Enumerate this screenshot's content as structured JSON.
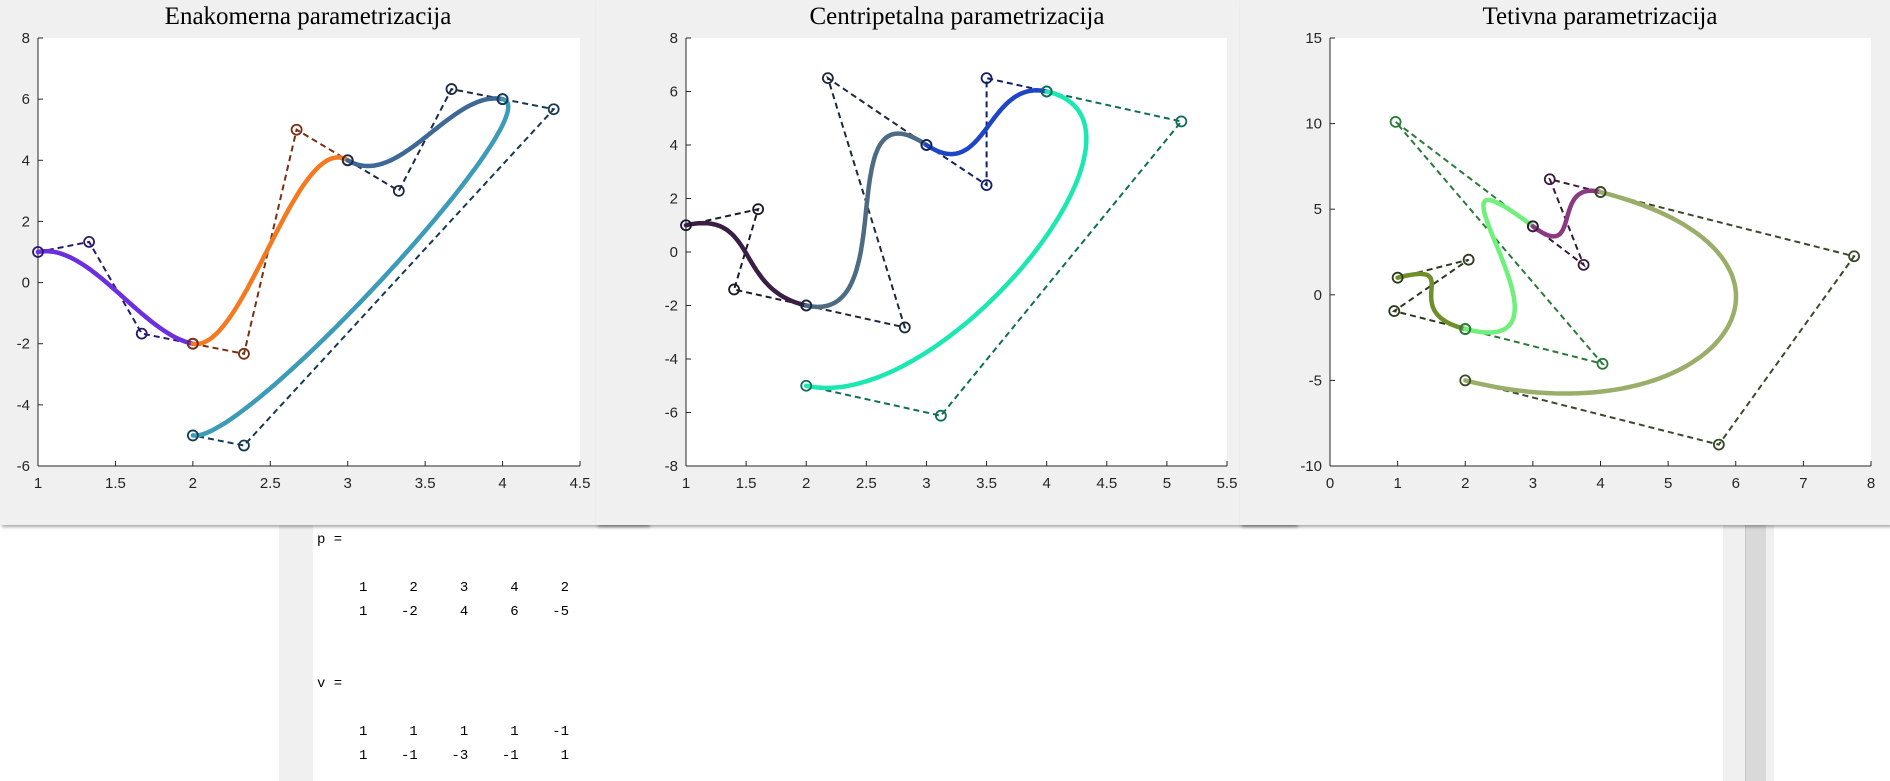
{
  "console": {
    "lines": [
      "p =",
      "",
      "     1     2     3     4     2",
      "     1    -2     4     6    -5",
      "",
      "",
      "v =",
      "",
      "     1     1     1     1    -1",
      "     1    -1    -3    -1     1"
    ]
  },
  "chart_data": [
    {
      "type": "line",
      "title": "Enakomerna parametrizacija",
      "xlim": [
        1,
        4.5
      ],
      "ylim": [
        -6,
        8
      ],
      "xticks": [
        "1",
        "1.5",
        "2",
        "2.5",
        "3",
        "3.5",
        "4",
        "4.5"
      ],
      "yticks": [
        "-6",
        "-4",
        "-2",
        "0",
        "2",
        "4",
        "6",
        "8"
      ],
      "grid": false,
      "segments": [
        {
          "color": "#6b2ee0",
          "polyColor": "#2a1a6e",
          "control": [
            [
              1,
              1
            ],
            [
              1.33,
              1.33
            ],
            [
              1.67,
              -1.67
            ],
            [
              2,
              -2
            ]
          ]
        },
        {
          "color": "#f47a20",
          "polyColor": "#7a2e12",
          "control": [
            [
              2,
              -2
            ],
            [
              2.33,
              -2.33
            ],
            [
              2.67,
              5
            ],
            [
              3,
              4
            ]
          ]
        },
        {
          "color": "#3e6896",
          "polyColor": "#1c2a48",
          "control": [
            [
              3,
              4
            ],
            [
              3.33,
              3
            ],
            [
              3.67,
              6.33
            ],
            [
              4,
              6
            ]
          ]
        },
        {
          "color": "#3c9bb8",
          "polyColor": "#163a52",
          "control": [
            [
              4,
              6
            ],
            [
              4.33,
              5.67
            ],
            [
              2.33,
              -5.33
            ],
            [
              2,
              -5
            ]
          ]
        }
      ]
    },
    {
      "type": "line",
      "title": "Centripetalna parametrizacija",
      "xlim": [
        1,
        5.5
      ],
      "ylim": [
        -8,
        8
      ],
      "xticks": [
        "1",
        "1.5",
        "2",
        "2.5",
        "3",
        "3.5",
        "4",
        "4.5",
        "5",
        "5.5"
      ],
      "yticks": [
        "-8",
        "-6",
        "-4",
        "-2",
        "0",
        "2",
        "4",
        "6",
        "8"
      ],
      "grid": false,
      "segments": [
        {
          "color": "#3a1f45",
          "polyColor": "#1a1a2a",
          "control": [
            [
              1,
              1
            ],
            [
              1.6,
              1.6
            ],
            [
              1.4,
              -1.4
            ],
            [
              2,
              -2
            ]
          ]
        },
        {
          "color": "#4d6b82",
          "polyColor": "#1e2a3a",
          "control": [
            [
              2,
              -2
            ],
            [
              2.82,
              -2.82
            ],
            [
              2.18,
              6.5
            ],
            [
              3,
              4
            ]
          ]
        },
        {
          "color": "#1e44c8",
          "polyColor": "#10206a",
          "control": [
            [
              3,
              4
            ],
            [
              3.5,
              2.5
            ],
            [
              3.5,
              6.5
            ],
            [
              4,
              6
            ]
          ]
        },
        {
          "color": "#1ae8b0",
          "polyColor": "#0f6e58",
          "control": [
            [
              4,
              6
            ],
            [
              5.12,
              4.88
            ],
            [
              3.12,
              -6.12
            ],
            [
              2,
              -5
            ]
          ]
        }
      ]
    },
    {
      "type": "line",
      "title": "Tetivna parametrizacija",
      "xlim": [
        0,
        8
      ],
      "ylim": [
        -10,
        15
      ],
      "xticks": [
        "0",
        "1",
        "2",
        "3",
        "4",
        "5",
        "6",
        "7",
        "8"
      ],
      "yticks": [
        "-10",
        "-5",
        "0",
        "5",
        "10",
        "15"
      ],
      "grid": false,
      "segments": [
        {
          "color": "#6e8f2a",
          "polyColor": "#2c3a1e",
          "control": [
            [
              1,
              1
            ],
            [
              2.05,
              2.05
            ],
            [
              0.95,
              -0.95
            ],
            [
              2,
              -2
            ]
          ]
        },
        {
          "color": "#6ef07a",
          "polyColor": "#2a7a3a",
          "control": [
            [
              2,
              -2
            ],
            [
              4.03,
              -4.03
            ],
            [
              0.97,
              10.1
            ],
            [
              3,
              4
            ]
          ]
        },
        {
          "color": "#8a3a80",
          "polyColor": "#3a1a3a",
          "control": [
            [
              3,
              4
            ],
            [
              3.75,
              1.75
            ],
            [
              3.25,
              6.75
            ],
            [
              4,
              6
            ]
          ]
        },
        {
          "color": "#9aae6a",
          "polyColor": "#3a4a2a",
          "control": [
            [
              4,
              6
            ],
            [
              7.75,
              2.25
            ],
            [
              5.75,
              -8.75
            ],
            [
              2,
              -5
            ]
          ]
        }
      ]
    }
  ]
}
